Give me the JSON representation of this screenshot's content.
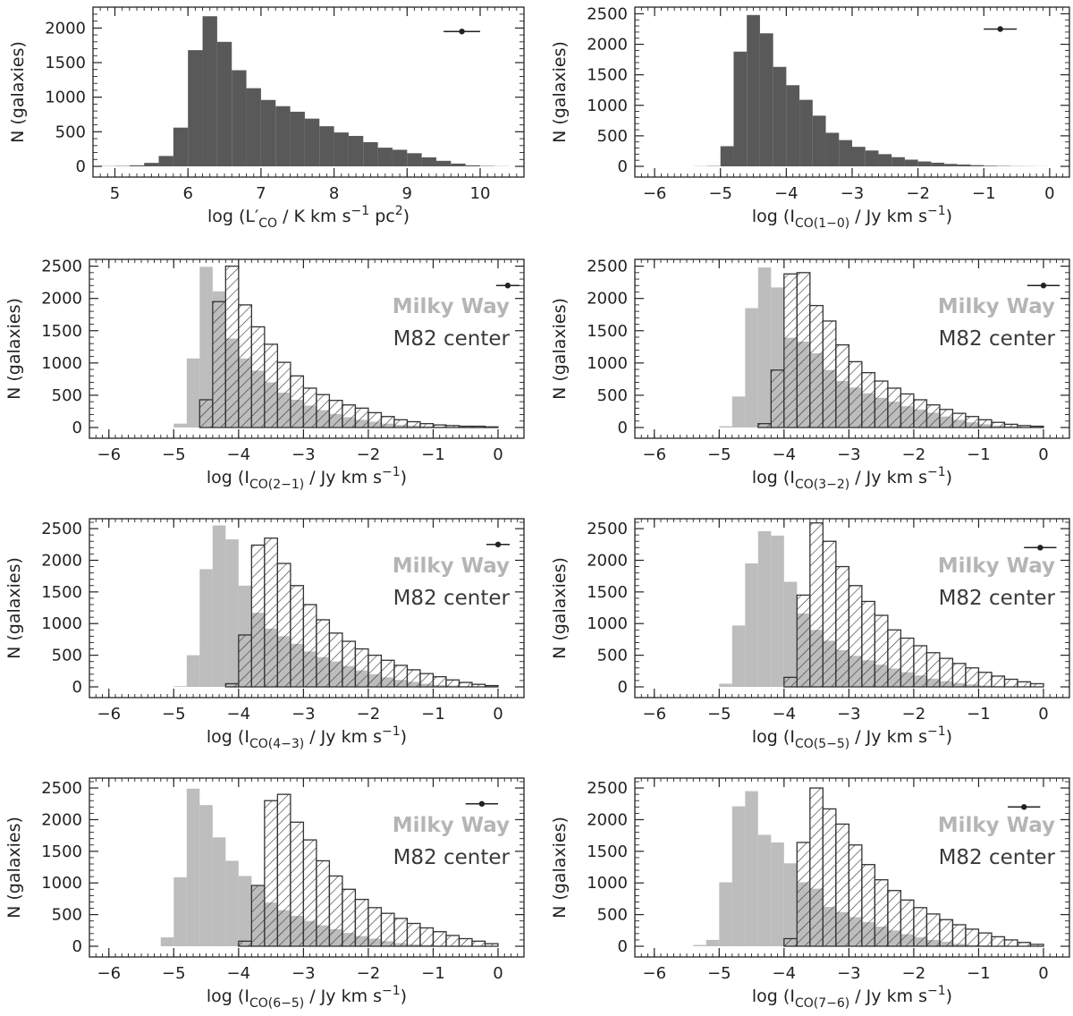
{
  "figure": {
    "colors": {
      "single": "#595959",
      "milky_way": "#bdbdbd",
      "m82": "#333333",
      "axis": "#222222"
    }
  },
  "chart_data": [
    {
      "type": "bar",
      "id": "lco",
      "xlim": [
        4.7,
        10.6
      ],
      "ylim": [
        0,
        2250
      ],
      "xticks": [
        5,
        6,
        7,
        8,
        9,
        10
      ],
      "xtick_labels": [
        "5",
        "6",
        "7",
        "8",
        "9",
        "10"
      ],
      "yticks": [
        0,
        500,
        1000,
        1500,
        2000
      ],
      "ytick_labels": [
        "0",
        "500",
        "1000",
        "1500",
        "2000"
      ],
      "ylabel": "N (galaxies)",
      "xlabel": {
        "pre": "log (L",
        "prime": "′",
        "sub": "CO",
        "post": " / K km s",
        "sup": "−1",
        "post2": " pc",
        "sup2": "2",
        "post3": ")"
      },
      "errorbar": {
        "x": 9.75,
        "y": 1950,
        "xerr": 0.25
      },
      "series": [
        {
          "name": "distribution",
          "style": "single",
          "start": 4.8,
          "width": 0.2,
          "values": [
            3,
            5,
            15,
            50,
            150,
            560,
            1680,
            2170,
            1800,
            1390,
            1130,
            960,
            870,
            790,
            690,
            580,
            490,
            440,
            350,
            270,
            240,
            190,
            130,
            80,
            40,
            15,
            5,
            2
          ]
        }
      ]
    },
    {
      "type": "bar",
      "id": "co10",
      "xlim": [
        -6.3,
        0.3
      ],
      "ylim": [
        0,
        2550
      ],
      "xticks": [
        -6,
        -5,
        -4,
        -3,
        -2,
        -1,
        0
      ],
      "xtick_labels": [
        "−6",
        "−5",
        "−4",
        "−3",
        "−2",
        "−1",
        "0"
      ],
      "yticks": [
        0,
        500,
        1000,
        1500,
        2000,
        2500
      ],
      "ytick_labels": [
        "0",
        "500",
        "1000",
        "1500",
        "2000",
        "2500"
      ],
      "ylabel": "N (galaxies)",
      "xlabel": {
        "pre": "log (I",
        "sub": "CO(1−0)",
        "post": " / Jy km s",
        "sup": "−1",
        "post2": ")"
      },
      "errorbar": {
        "x": -0.75,
        "y": 2250,
        "xerr": 0.25
      },
      "series": [
        {
          "name": "distribution",
          "style": "single",
          "start": -6.2,
          "width": 0.2,
          "values": [
            0,
            0,
            0,
            0,
            2,
            5,
            330,
            1880,
            2480,
            2180,
            1630,
            1330,
            1090,
            830,
            550,
            430,
            320,
            260,
            200,
            150,
            110,
            80,
            60,
            40,
            30,
            20,
            10,
            6,
            3,
            2,
            1,
            0
          ]
        }
      ]
    },
    {
      "type": "bar",
      "id": "co21",
      "xlim": [
        -6.3,
        0.4
      ],
      "ylim": [
        0,
        2550
      ],
      "xticks": [
        -6,
        -5,
        -4,
        -3,
        -2,
        -1,
        0
      ],
      "xtick_labels": [
        "−6",
        "−5",
        "−4",
        "−3",
        "−2",
        "−1",
        "0"
      ],
      "yticks": [
        0,
        500,
        1000,
        1500,
        2000,
        2500
      ],
      "ytick_labels": [
        "0",
        "500",
        "1000",
        "1500",
        "2000",
        "2500"
      ],
      "ylabel": "N (galaxies)",
      "xlabel": {
        "pre": "log (I",
        "sub": "CO(2−1)",
        "post": " / Jy km s",
        "sup": "−1",
        "post2": ")"
      },
      "errorbar": {
        "x": 0.15,
        "y": 2200,
        "xerr": 0.18
      },
      "legend": [
        "Milky Way",
        "M82 center"
      ],
      "series": [
        {
          "name": "Milky Way",
          "style": "milky_way",
          "start": -5.0,
          "width": 0.2,
          "values": [
            60,
            1070,
            2490,
            2110,
            1380,
            1070,
            880,
            700,
            540,
            430,
            340,
            270,
            210,
            160,
            120,
            90,
            60,
            40,
            30,
            20,
            10,
            5,
            3,
            1
          ]
        },
        {
          "name": "M82 center",
          "style": "m82",
          "start": -4.6,
          "width": 0.2,
          "values": [
            430,
            1950,
            2500,
            1900,
            1560,
            1290,
            1010,
            800,
            610,
            510,
            420,
            350,
            300,
            230,
            170,
            120,
            90,
            60,
            40,
            30,
            20,
            20,
            10
          ]
        }
      ]
    },
    {
      "type": "bar",
      "id": "co32",
      "xlim": [
        -6.3,
        0.4
      ],
      "ylim": [
        0,
        2550
      ],
      "xticks": [
        -6,
        -5,
        -4,
        -3,
        -2,
        -1,
        0
      ],
      "xtick_labels": [
        "−6",
        "−5",
        "−4",
        "−3",
        "−2",
        "−1",
        "0"
      ],
      "yticks": [
        0,
        500,
        1000,
        1500,
        2000,
        2500
      ],
      "ytick_labels": [
        "0",
        "500",
        "1000",
        "1500",
        "2000",
        "2500"
      ],
      "ylabel": "N (galaxies)",
      "xlabel": {
        "pre": "log (I",
        "sub": "CO(3−2)",
        "post": " / Jy km s",
        "sup": "−1",
        "post2": ")"
      },
      "errorbar": {
        "x": 0.0,
        "y": 2200,
        "xerr": 0.25
      },
      "legend": [
        "Milky Way",
        "M82 center"
      ],
      "series": [
        {
          "name": "Milky Way",
          "style": "milky_way",
          "start": -5.0,
          "width": 0.2,
          "values": [
            20,
            480,
            1850,
            2480,
            2170,
            1390,
            1330,
            1150,
            890,
            720,
            620,
            530,
            460,
            400,
            330,
            280,
            230,
            170,
            120,
            80,
            50,
            30,
            20,
            10,
            5
          ]
        },
        {
          "name": "M82 center",
          "style": "m82",
          "start": -4.4,
          "width": 0.2,
          "values": [
            60,
            890,
            2380,
            2400,
            1890,
            1650,
            1280,
            1020,
            850,
            720,
            610,
            520,
            430,
            350,
            280,
            220,
            170,
            120,
            80,
            50,
            30,
            20
          ]
        }
      ]
    },
    {
      "type": "bar",
      "id": "co43",
      "xlim": [
        -6.3,
        0.4
      ],
      "ylim": [
        0,
        2600
      ],
      "xticks": [
        -6,
        -5,
        -4,
        -3,
        -2,
        -1,
        0
      ],
      "xtick_labels": [
        "−6",
        "−5",
        "−4",
        "−3",
        "−2",
        "−1",
        "0"
      ],
      "yticks": [
        0,
        500,
        1000,
        1500,
        2000,
        2500
      ],
      "ytick_labels": [
        "0",
        "500",
        "1000",
        "1500",
        "2000",
        "2500"
      ],
      "ylabel": "N (galaxies)",
      "xlabel": {
        "pre": "log (I",
        "sub": "CO(4−3)",
        "post": " / Jy km s",
        "sup": "−1",
        "post2": ")"
      },
      "errorbar": {
        "x": 0.0,
        "y": 2250,
        "xerr": 0.18
      },
      "legend": [
        "Milky Way",
        "M82 center"
      ],
      "series": [
        {
          "name": "Milky Way",
          "style": "milky_way",
          "start": -5.0,
          "width": 0.2,
          "values": [
            10,
            500,
            1860,
            2550,
            2330,
            1600,
            1170,
            920,
            800,
            680,
            560,
            470,
            400,
            330,
            260,
            200,
            150,
            110,
            80,
            50,
            30,
            20,
            10,
            5
          ]
        },
        {
          "name": "M82 center",
          "style": "m82",
          "start": -4.2,
          "width": 0.2,
          "values": [
            50,
            820,
            2240,
            2350,
            1950,
            1600,
            1300,
            1060,
            850,
            720,
            600,
            500,
            420,
            340,
            270,
            210,
            160,
            110,
            70,
            40,
            20
          ]
        }
      ]
    },
    {
      "type": "bar",
      "id": "co55",
      "xlim": [
        -6.3,
        0.4
      ],
      "ylim": [
        0,
        2600
      ],
      "xticks": [
        -6,
        -5,
        -4,
        -3,
        -2,
        -1,
        0
      ],
      "xtick_labels": [
        "−6",
        "−5",
        "−4",
        "−3",
        "−2",
        "−1",
        "0"
      ],
      "yticks": [
        0,
        500,
        1000,
        1500,
        2000,
        2500
      ],
      "ytick_labels": [
        "0",
        "500",
        "1000",
        "1500",
        "2000",
        "2500"
      ],
      "ylabel": "N (galaxies)",
      "xlabel": {
        "pre": "log (I",
        "sub": "CO(5−5)",
        "post": " / Jy km s",
        "sup": "−1",
        "post2": ")"
      },
      "errorbar": {
        "x": -0.05,
        "y": 2200,
        "xerr": 0.25
      },
      "legend": [
        "Milky Way",
        "M82 center"
      ],
      "series": [
        {
          "name": "Milky Way",
          "style": "milky_way",
          "start": -5.0,
          "width": 0.2,
          "values": [
            50,
            970,
            1950,
            2460,
            2390,
            1660,
            1160,
            900,
            730,
            580,
            490,
            420,
            350,
            290,
            230,
            180,
            130,
            90,
            60,
            40,
            20,
            10,
            5
          ]
        },
        {
          "name": "M82 center",
          "style": "m82",
          "start": -4.0,
          "width": 0.2,
          "values": [
            150,
            1450,
            2590,
            2300,
            1900,
            1600,
            1350,
            1130,
            900,
            770,
            650,
            540,
            450,
            370,
            300,
            230,
            170,
            120,
            80,
            50
          ]
        }
      ]
    },
    {
      "type": "bar",
      "id": "co65",
      "xlim": [
        -6.3,
        0.4
      ],
      "ylim": [
        0,
        2600
      ],
      "xticks": [
        -6,
        -5,
        -4,
        -3,
        -2,
        -1,
        0
      ],
      "xtick_labels": [
        "−6",
        "−5",
        "−4",
        "−3",
        "−2",
        "−1",
        "0"
      ],
      "yticks": [
        0,
        500,
        1000,
        1500,
        2000,
        2500
      ],
      "ytick_labels": [
        "0",
        "500",
        "1000",
        "1500",
        "2000",
        "2500"
      ],
      "ylabel": "N (galaxies)",
      "xlabel": {
        "pre": "log (I",
        "sub": "CO(6−5)",
        "post": " / Jy km s",
        "sup": "−1",
        "post2": ")"
      },
      "errorbar": {
        "x": -0.25,
        "y": 2250,
        "xerr": 0.25
      },
      "legend": [
        "Milky Way",
        "M82 center"
      ],
      "series": [
        {
          "name": "Milky Way",
          "style": "milky_way",
          "start": -5.2,
          "width": 0.2,
          "values": [
            140,
            1090,
            2490,
            2230,
            1720,
            1350,
            1110,
            950,
            690,
            570,
            480,
            400,
            330,
            270,
            210,
            160,
            120,
            80,
            50,
            30,
            20,
            10
          ]
        },
        {
          "name": "M82 center",
          "style": "m82",
          "start": -4.0,
          "width": 0.2,
          "values": [
            80,
            960,
            2300,
            2400,
            1960,
            1680,
            1350,
            1110,
            900,
            740,
            610,
            520,
            440,
            360,
            290,
            230,
            170,
            120,
            80,
            40
          ]
        }
      ]
    },
    {
      "type": "bar",
      "id": "co76",
      "xlim": [
        -6.3,
        0.4
      ],
      "ylim": [
        0,
        2600
      ],
      "xticks": [
        -6,
        -5,
        -4,
        -3,
        -2,
        -1,
        0
      ],
      "xtick_labels": [
        "−6",
        "−5",
        "−4",
        "−3",
        "−2",
        "−1",
        "0"
      ],
      "yticks": [
        0,
        500,
        1000,
        1500,
        2000,
        2500
      ],
      "ytick_labels": [
        "0",
        "500",
        "1000",
        "1500",
        "2000",
        "2500"
      ],
      "ylabel": "N (galaxies)",
      "xlabel": {
        "pre": "log (I",
        "sub": "CO(7−6)",
        "post": " / Jy km s",
        "sup": "−1",
        "post2": ")"
      },
      "errorbar": {
        "x": -0.3,
        "y": 2200,
        "xerr": 0.25
      },
      "legend": [
        "Milky Way",
        "M82 center"
      ],
      "series": [
        {
          "name": "Milky Way",
          "style": "milky_way",
          "start": -5.4,
          "width": 0.2,
          "values": [
            20,
            100,
            1010,
            2210,
            2450,
            1760,
            1640,
            1310,
            1010,
            910,
            620,
            540,
            460,
            380,
            310,
            250,
            190,
            140,
            100,
            70,
            40,
            20,
            10
          ]
        },
        {
          "name": "M82 center",
          "style": "m82",
          "start": -4.0,
          "width": 0.2,
          "values": [
            120,
            1640,
            2500,
            2170,
            1930,
            1600,
            1290,
            1050,
            880,
            730,
            610,
            510,
            420,
            340,
            270,
            210,
            150,
            100,
            60,
            30
          ]
        }
      ]
    }
  ]
}
